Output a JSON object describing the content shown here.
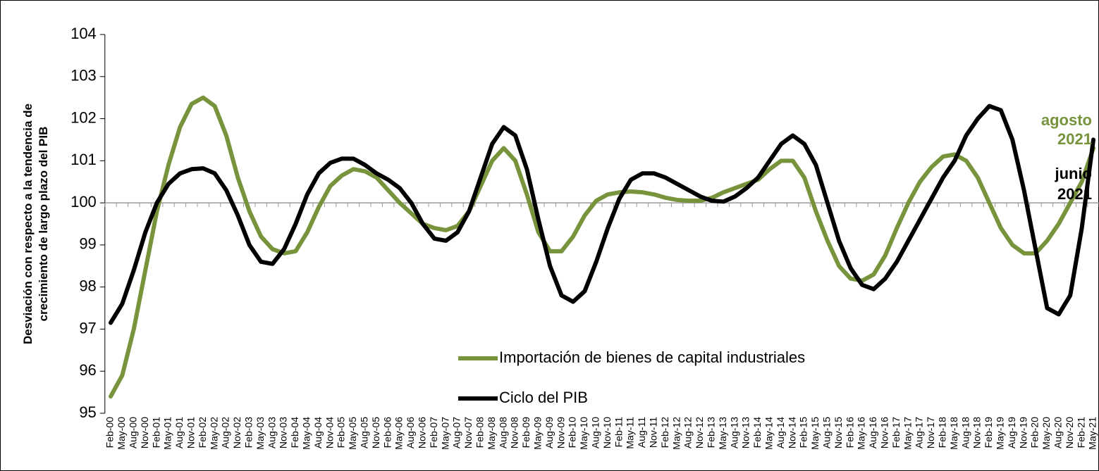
{
  "chart_data": {
    "type": "line",
    "y_label": "Desviación con respecto a la tendencia de crecimiento de largo plazo del PIB",
    "categories": [
      "Feb-00",
      "May-00",
      "Aug-00",
      "Nov-00",
      "Feb-01",
      "May-01",
      "Aug-01",
      "Nov-01",
      "Feb-02",
      "May-02",
      "Aug-02",
      "Nov-02",
      "Feb-03",
      "May-03",
      "Aug-03",
      "Nov-03",
      "Feb-04",
      "May-04",
      "Aug-04",
      "Nov-04",
      "Feb-05",
      "May-05",
      "Aug-05",
      "Nov-05",
      "Feb-06",
      "May-06",
      "Aug-06",
      "Nov-06",
      "Feb-07",
      "May-07",
      "Aug-07",
      "Nov-07",
      "Feb-08",
      "May-08",
      "Aug-08",
      "Nov-08",
      "Feb-09",
      "May-09",
      "Aug-09",
      "Nov-09",
      "Feb-10",
      "May-10",
      "Aug-10",
      "Nov-10",
      "Feb-11",
      "May-11",
      "Aug-11",
      "Nov-11",
      "Feb-12",
      "May-12",
      "Aug-12",
      "Nov-12",
      "Feb-13",
      "May-13",
      "Aug-13",
      "Nov-13",
      "Feb-14",
      "May-14",
      "Aug-14",
      "Nov-14",
      "Feb-15",
      "May-15",
      "Aug-15",
      "Nov-15",
      "Feb-16",
      "May-16",
      "Aug-16",
      "Nov-16",
      "Feb-17",
      "May-17",
      "Aug-17",
      "Nov-17",
      "Feb-18",
      "May-18",
      "Aug-18",
      "Nov-18",
      "Feb-19",
      "May-19",
      "Aug-19",
      "Nov-19",
      "Feb-20",
      "May-20",
      "Aug-20",
      "Nov-20",
      "Feb-21",
      "May-21"
    ],
    "series": [
      {
        "name": "Importación de bienes de capital industriales",
        "color": "#77933c",
        "values": [
          95.4,
          95.9,
          97.0,
          98.4,
          99.8,
          100.9,
          101.8,
          102.35,
          102.5,
          102.3,
          101.6,
          100.6,
          99.8,
          99.2,
          98.9,
          98.8,
          98.85,
          99.3,
          99.9,
          100.4,
          100.65,
          100.8,
          100.75,
          100.6,
          100.3,
          100.0,
          99.75,
          99.5,
          99.4,
          99.35,
          99.45,
          99.8,
          100.4,
          101.0,
          101.3,
          101.0,
          100.2,
          99.3,
          98.85,
          98.85,
          99.2,
          99.7,
          100.05,
          100.2,
          100.25,
          100.27,
          100.25,
          100.2,
          100.12,
          100.07,
          100.05,
          100.05,
          100.12,
          100.25,
          100.35,
          100.45,
          100.55,
          100.8,
          101.0,
          101.0,
          100.6,
          99.8,
          99.1,
          98.5,
          98.2,
          98.15,
          98.3,
          98.75,
          99.4,
          100.0,
          100.5,
          100.85,
          101.1,
          101.15,
          101.0,
          100.6,
          100.0,
          99.4,
          99.0,
          98.8,
          98.8,
          99.1,
          99.5,
          100.0,
          100.5,
          101.3
        ]
      },
      {
        "name": "Ciclo del PIB",
        "color": "#000000",
        "values": [
          97.15,
          97.6,
          98.4,
          99.3,
          100.0,
          100.45,
          100.7,
          100.8,
          100.82,
          100.7,
          100.3,
          99.7,
          99.0,
          98.6,
          98.55,
          98.9,
          99.5,
          100.2,
          100.7,
          100.95,
          101.05,
          101.05,
          100.9,
          100.7,
          100.55,
          100.35,
          100.0,
          99.5,
          99.15,
          99.1,
          99.3,
          99.8,
          100.6,
          101.4,
          101.8,
          101.6,
          100.8,
          99.6,
          98.5,
          97.8,
          97.65,
          97.9,
          98.6,
          99.4,
          100.1,
          100.55,
          100.7,
          100.7,
          100.6,
          100.45,
          100.3,
          100.15,
          100.05,
          100.03,
          100.15,
          100.35,
          100.6,
          101.0,
          101.4,
          101.6,
          101.4,
          100.9,
          100.0,
          99.1,
          98.45,
          98.05,
          97.95,
          98.2,
          98.6,
          99.1,
          99.6,
          100.1,
          100.6,
          101.0,
          101.6,
          102.0,
          102.3,
          102.2,
          101.5,
          100.3,
          98.9,
          97.5,
          97.35,
          97.8,
          99.4,
          101.5
        ]
      }
    ],
    "ylim": [
      95,
      104
    ],
    "yticks": [
      95,
      96,
      97,
      98,
      99,
      100,
      101,
      102,
      103,
      104
    ],
    "x_axis_position": 100,
    "annotations": [
      {
        "lines": [
          "agosto",
          "2021"
        ],
        "color": "#77933c"
      },
      {
        "lines": [
          "junio",
          "2021"
        ],
        "color": "#000000"
      }
    ]
  }
}
